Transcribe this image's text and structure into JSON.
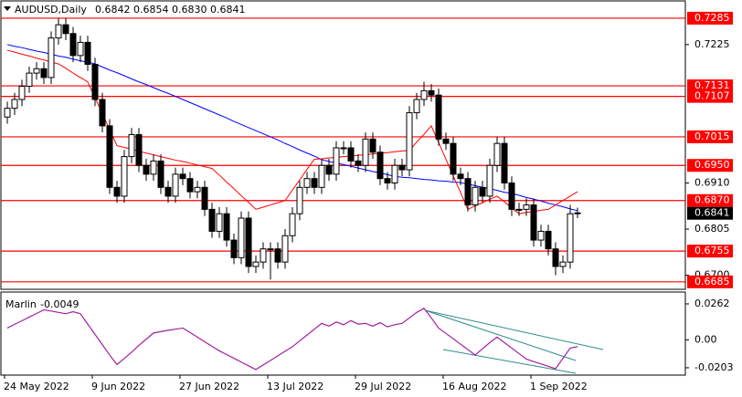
{
  "chart_data": {
    "type": "candlestick",
    "header": {
      "symbol": "AUDUSD,Daily",
      "ohlc_text": "0.6842 0.6854 0.6830 0.6841"
    },
    "categories": [
      "24 May 2022",
      null,
      null,
      null,
      null,
      null,
      null,
      null,
      null,
      null,
      null,
      null,
      "9 Jun 2022",
      null,
      null,
      null,
      null,
      null,
      null,
      null,
      null,
      null,
      null,
      null,
      "27 Jun 2022",
      null,
      null,
      null,
      null,
      null,
      null,
      null,
      null,
      null,
      null,
      null,
      "13 Jul 2022",
      null,
      null,
      null,
      null,
      null,
      null,
      null,
      null,
      null,
      null,
      null,
      "29 Jul 2022",
      null,
      null,
      null,
      null,
      null,
      null,
      null,
      null,
      null,
      null,
      null,
      "16 Aug 2022",
      null,
      null,
      null,
      null,
      null,
      null,
      null,
      null,
      null,
      null,
      null,
      "1 Sep 2022",
      null,
      null,
      null,
      null,
      null,
      null
    ],
    "open": [
      0.706,
      0.708,
      0.71,
      0.713,
      0.716,
      0.717,
      0.715,
      0.724,
      0.727,
      0.725,
      0.72,
      0.723,
      0.718,
      0.71,
      0.704,
      0.69,
      0.688,
      0.697,
      0.702,
      0.695,
      0.693,
      0.696,
      0.69,
      0.688,
      0.693,
      0.692,
      0.689,
      0.69,
      0.685,
      0.68,
      0.684,
      0.678,
      0.674,
      0.683,
      0.672,
      0.673,
      0.676,
      0.676,
      0.673,
      0.679,
      0.684,
      0.69,
      0.692,
      0.69,
      0.695,
      0.693,
      0.699,
      0.699,
      0.696,
      0.695,
      0.701,
      0.698,
      0.692,
      0.691,
      0.695,
      0.694,
      0.707,
      0.71,
      0.712,
      0.711,
      0.701,
      0.7,
      0.693,
      0.692,
      0.686,
      0.69,
      0.688,
      0.695,
      0.7,
      0.691,
      0.685,
      0.685,
      0.686,
      0.678,
      0.68,
      0.676,
      0.672,
      0.673,
      0.6842
    ],
    "high": [
      0.7095,
      0.7115,
      0.7145,
      0.7175,
      0.7185,
      0.7185,
      0.7255,
      0.7285,
      0.7285,
      0.7265,
      0.7245,
      0.7245,
      0.7195,
      0.7115,
      0.7055,
      0.6915,
      0.6985,
      0.7035,
      0.7035,
      0.6965,
      0.6975,
      0.6975,
      0.6915,
      0.6945,
      0.6945,
      0.6935,
      0.6915,
      0.6915,
      0.6865,
      0.6855,
      0.6855,
      0.6795,
      0.6845,
      0.6845,
      0.6745,
      0.6775,
      0.6775,
      0.6775,
      0.6805,
      0.6855,
      0.6915,
      0.6935,
      0.6935,
      0.6965,
      0.6965,
      0.7005,
      0.7005,
      0.7005,
      0.6975,
      0.7025,
      0.7025,
      0.6995,
      0.6935,
      0.6965,
      0.6965,
      0.7085,
      0.7115,
      0.714,
      0.7135,
      0.7125,
      0.7025,
      0.7015,
      0.6945,
      0.6935,
      0.6915,
      0.6915,
      0.6965,
      0.7015,
      0.7015,
      0.6925,
      0.6865,
      0.6875,
      0.6875,
      0.6815,
      0.6815,
      0.6775,
      0.6745,
      0.686,
      0.6854
    ],
    "low": [
      0.7045,
      0.7065,
      0.7085,
      0.7115,
      0.7145,
      0.7135,
      0.7135,
      0.7225,
      0.7235,
      0.7185,
      0.7185,
      0.7165,
      0.7085,
      0.7025,
      0.6885,
      0.6865,
      0.6865,
      0.6955,
      0.6935,
      0.6915,
      0.6915,
      0.6885,
      0.6865,
      0.6865,
      0.6905,
      0.6875,
      0.6875,
      0.6835,
      0.6785,
      0.6785,
      0.6765,
      0.6725,
      0.6725,
      0.6705,
      0.6705,
      0.6715,
      0.669,
      0.6715,
      0.6715,
      0.6775,
      0.6825,
      0.6885,
      0.6885,
      0.6885,
      0.6915,
      0.6915,
      0.6975,
      0.6945,
      0.6935,
      0.6935,
      0.6965,
      0.6905,
      0.6895,
      0.6895,
      0.6925,
      0.6925,
      0.7055,
      0.7085,
      0.7095,
      0.6995,
      0.6985,
      0.6915,
      0.6905,
      0.6845,
      0.6845,
      0.6865,
      0.6865,
      0.6935,
      0.6895,
      0.6835,
      0.6835,
      0.6835,
      0.6765,
      0.6765,
      0.6745,
      0.67,
      0.6705,
      0.6715,
      0.683
    ],
    "close": [
      0.708,
      0.71,
      0.713,
      0.716,
      0.717,
      0.715,
      0.724,
      0.727,
      0.725,
      0.72,
      0.723,
      0.718,
      0.71,
      0.704,
      0.69,
      0.688,
      0.697,
      0.702,
      0.695,
      0.693,
      0.696,
      0.69,
      0.688,
      0.693,
      0.692,
      0.689,
      0.69,
      0.685,
      0.68,
      0.684,
      0.678,
      0.674,
      0.683,
      0.672,
      0.673,
      0.676,
      0.676,
      0.673,
      0.679,
      0.684,
      0.69,
      0.692,
      0.69,
      0.695,
      0.693,
      0.699,
      0.699,
      0.696,
      0.695,
      0.701,
      0.698,
      0.692,
      0.691,
      0.695,
      0.694,
      0.707,
      0.71,
      0.712,
      0.711,
      0.701,
      0.7,
      0.693,
      0.692,
      0.686,
      0.69,
      0.688,
      0.695,
      0.7,
      0.691,
      0.685,
      0.685,
      0.686,
      0.678,
      0.68,
      0.676,
      0.672,
      0.673,
      0.684,
      0.6841
    ],
    "moving_averages": [
      {
        "color": "#0000ff",
        "values": [
          0.7225,
          0.7221,
          0.7218,
          0.7214,
          0.721,
          0.7207,
          0.7203,
          0.7199,
          0.7196,
          0.7192,
          0.7188,
          0.7185,
          0.7181,
          0.7174,
          0.7167,
          0.7161,
          0.7154,
          0.7147,
          0.714,
          0.7134,
          0.7127,
          0.712,
          0.7114,
          0.7107,
          0.71,
          0.7093,
          0.7086,
          0.7079,
          0.7072,
          0.7065,
          0.7058,
          0.705,
          0.7043,
          0.7036,
          0.7029,
          0.7022,
          0.7015,
          0.7008,
          0.7,
          0.6993,
          0.6985,
          0.6978,
          0.6971,
          0.6963,
          0.6959,
          0.6955,
          0.6952,
          0.6948,
          0.6944,
          0.694,
          0.6936,
          0.6933,
          0.6929,
          0.6925,
          0.6923,
          0.6922,
          0.692,
          0.6918,
          0.6917,
          0.6915,
          0.6914,
          0.6912,
          0.6911,
          0.6907,
          0.6904,
          0.69,
          0.6897,
          0.6893,
          0.6889,
          0.6886,
          0.6882,
          0.6877,
          0.6873,
          0.6869,
          0.6864,
          0.686,
          0.6856,
          0.6851,
          0.6847
        ]
      },
      {
        "color": "#ff0000",
        "values": [
          0.7212,
          0.7208,
          0.7203,
          0.7199,
          0.7194,
          0.719,
          0.7185,
          0.7181,
          0.7171,
          0.716,
          0.715,
          0.714,
          0.7104,
          0.7068,
          0.7031,
          0.6995,
          0.6991,
          0.6987,
          0.6982,
          0.6978,
          0.6974,
          0.697,
          0.6966,
          0.6962,
          0.6959,
          0.6955,
          0.6951,
          0.6947,
          0.6943,
          0.6928,
          0.6912,
          0.6897,
          0.6881,
          0.6866,
          0.685,
          0.6855,
          0.686,
          0.6865,
          0.687,
          0.6894,
          0.6917,
          0.6941,
          0.6964,
          0.6965,
          0.6967,
          0.6968,
          0.697,
          0.6971,
          0.6973,
          0.6974,
          0.6976,
          0.6978,
          0.6979,
          0.6981,
          0.6983,
          0.6984,
          0.7003,
          0.7021,
          0.704,
          0.7002,
          0.6964,
          0.6926,
          0.6888,
          0.685,
          0.6858,
          0.6865,
          0.6873,
          0.688,
          0.6867,
          0.6853,
          0.684,
          0.6843,
          0.6845,
          0.6848,
          0.685,
          0.686,
          0.687,
          0.688,
          0.689
        ]
      }
    ],
    "ylim": [
      0.6668,
      0.7316
    ],
    "yticks": [
      0.7225,
      {
        "value": 0.691,
        "label": "0.6910"
      },
      0.6805,
      {
        "value": 0.67,
        "label": "0.6700"
      }
    ],
    "levels": [
      0.7285,
      0.7131,
      0.7107,
      0.7015,
      {
        "value": 0.695,
        "label": "0.6950"
      },
      {
        "value": 0.687,
        "label": "0.6870"
      },
      0.6755,
      0.6685
    ],
    "level_color": "#ff0000",
    "oscillator": {
      "name": "Marlin",
      "color": "#a020a0",
      "ylim": [
        -0.025,
        0.0335
      ],
      "yticks": [
        0.0262,
        {
          "value": 0,
          "label": "0.00"
        },
        -0.0203
      ],
      "values": [
        0.0086,
        0.0113,
        0.0139,
        0.0166,
        0.0192,
        0.0219,
        0.021,
        0.02,
        0.019,
        0.0205,
        0.019,
        0.0115,
        0.004,
        -0.0035,
        -0.011,
        -0.018,
        -0.0135,
        -0.009,
        -0.004,
        0.0005,
        0.005,
        0.006,
        0.007,
        0.0078,
        0.0086,
        0.0053,
        0.002,
        -0.0014,
        -0.0047,
        -0.008,
        -0.0107,
        -0.0134,
        -0.0162,
        -0.0189,
        -0.0216,
        -0.0183,
        -0.015,
        -0.0116,
        -0.0083,
        -0.005,
        -0.0007,
        0.0035,
        0.0078,
        0.012,
        0.01,
        0.013,
        0.011,
        0.014,
        0.0115,
        0.012,
        0.01,
        0.0125,
        0.0095,
        0.011,
        0.012,
        0.016,
        0.02,
        0.023,
        0.016,
        0.0086,
        0.0047,
        0.0008,
        -0.0032,
        -0.0071,
        -0.011,
        -0.0065,
        -0.002,
        0.002,
        -0.002,
        -0.006,
        -0.01,
        -0.014,
        -0.0158,
        -0.0175,
        -0.0193,
        -0.021,
        -0.0135,
        -0.006,
        -0.0049
      ]
    }
  }
}
